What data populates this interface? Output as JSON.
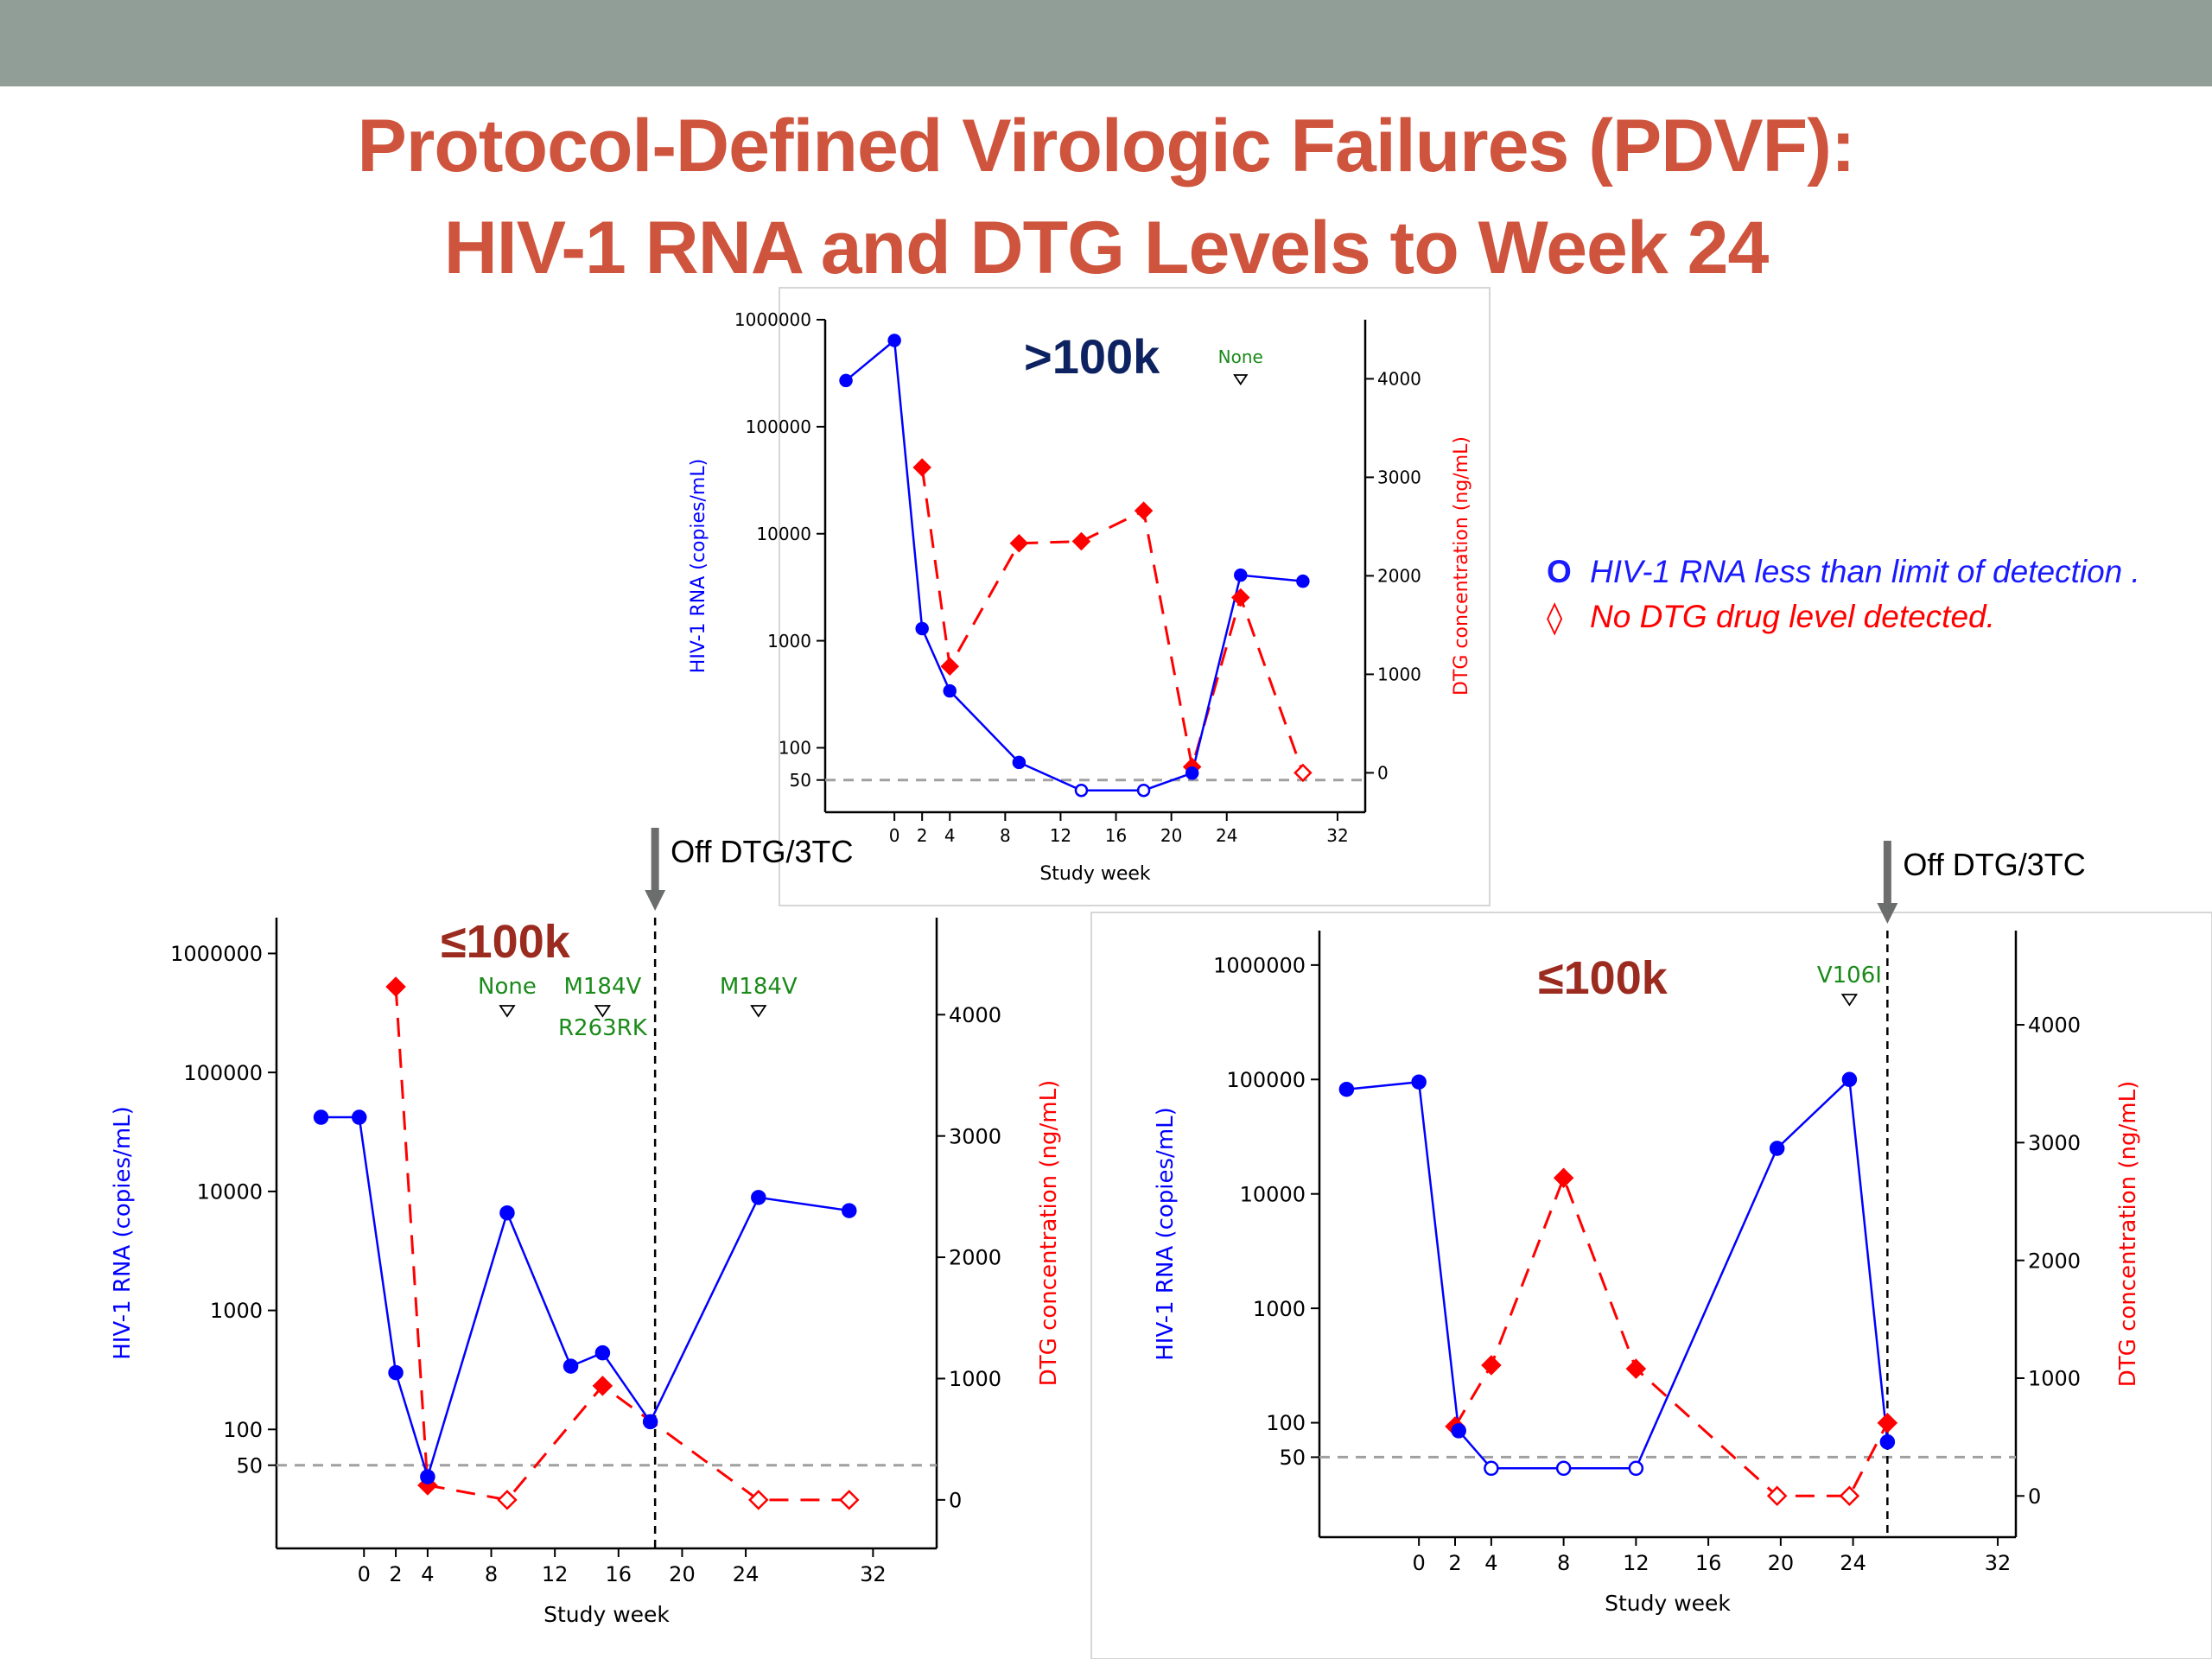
{
  "slide": {
    "title_line1": "Protocol-Defined Virologic Failures (PDVF):",
    "title_line2": "HIV-1 RNA and DTG Levels to Week 24"
  },
  "legend": {
    "rna_symbol": "O",
    "rna_text": "HIV-1 RNA less than limit of detection .",
    "dtg_symbol": "◊",
    "dtg_text": "No DTG drug level detected.",
    "rna_color": "#1a1aff",
    "dtg_color": "#ff0000"
  },
  "colors": {
    "rna": "#0000ff",
    "dtg": "#ff0000",
    "label": "#9b2a1f",
    "title_dark": "#0d2260",
    "mutation": "#1a8a1a",
    "ref_line": "#a0a0a0"
  },
  "chart_data": [
    {
      "type": "line",
      "label": ">100k",
      "xlabel": "Study week",
      "ylabel": "HIV-1 RNA (copies/mL)",
      "y2label": "DTG concentration (ng/mL)",
      "yscale": "log",
      "ylim": [
        25,
        1000000
      ],
      "y2lim": [
        -400,
        4600
      ],
      "xticks": [
        0,
        2,
        4,
        8,
        12,
        16,
        20,
        24,
        32
      ],
      "yticks": [
        1000000,
        100000,
        10000,
        1000,
        100,
        50
      ],
      "y2ticks": [
        4000,
        3000,
        2000,
        1000,
        0
      ],
      "reference_line": 50,
      "series": [
        {
          "name": "HIV-1 RNA",
          "points": [
            {
              "x": -3.5,
              "y": 270000,
              "bld": false
            },
            {
              "x": 0,
              "y": 640000,
              "bld": false
            },
            {
              "x": 2,
              "y": 1300,
              "bld": false
            },
            {
              "x": 4,
              "y": 340,
              "bld": false
            },
            {
              "x": 9,
              "y": 73,
              "bld": false
            },
            {
              "x": 13.5,
              "y": 40,
              "bld": true
            },
            {
              "x": 18,
              "y": 40,
              "bld": true
            },
            {
              "x": 21.5,
              "y": 58,
              "bld": false
            },
            {
              "x": 25,
              "y": 4100,
              "bld": false
            },
            {
              "x": 29.5,
              "y": 3600,
              "bld": false
            }
          ]
        },
        {
          "name": "DTG concentration",
          "points": [
            {
              "x": 2,
              "y": 3100,
              "nd": false
            },
            {
              "x": 4,
              "y": 1080,
              "nd": false
            },
            {
              "x": 9,
              "y": 2330,
              "nd": false
            },
            {
              "x": 13.5,
              "y": 2350,
              "nd": false
            },
            {
              "x": 18,
              "y": 2660,
              "nd": false
            },
            {
              "x": 21.5,
              "y": 60,
              "nd": false
            },
            {
              "x": 25,
              "y": 1780,
              "nd": false
            },
            {
              "x": 29.5,
              "y": 0,
              "nd": true
            }
          ]
        }
      ],
      "annotations": [
        {
          "x": 25,
          "lines": [
            "None"
          ]
        }
      ],
      "off_drug": null
    },
    {
      "type": "line",
      "label": "≤100k",
      "xlabel": "Study week",
      "ylabel": "HIV-1 RNA (copies/mL)",
      "y2label": "DTG concentration (ng/mL)",
      "yscale": "log",
      "ylim": [
        10,
        2000000
      ],
      "y2lim": [
        -400,
        4800
      ],
      "xticks": [
        0,
        2,
        4,
        8,
        12,
        16,
        20,
        24,
        32
      ],
      "yticks": [
        1000000,
        100000,
        10000,
        1000,
        100,
        50
      ],
      "y2ticks": [
        4000,
        3000,
        2000,
        1000,
        0
      ],
      "reference_line": 50,
      "series": [
        {
          "name": "HIV-1 RNA",
          "points": [
            {
              "x": -2.7,
              "y": 42000,
              "bld": false
            },
            {
              "x": -0.3,
              "y": 42000,
              "bld": false
            },
            {
              "x": 2,
              "y": 300,
              "bld": false
            },
            {
              "x": 4,
              "y": 40,
              "bld": false
            },
            {
              "x": 9,
              "y": 6600,
              "bld": false
            },
            {
              "x": 13,
              "y": 340,
              "bld": false
            },
            {
              "x": 15,
              "y": 440,
              "bld": false
            },
            {
              "x": 18,
              "y": 116,
              "bld": false
            },
            {
              "x": 24.8,
              "y": 8900,
              "bld": false
            },
            {
              "x": 30.5,
              "y": 6900,
              "bld": false
            }
          ]
        },
        {
          "name": "DTG concentration",
          "points": [
            {
              "x": 2,
              "y": 4230,
              "nd": false
            },
            {
              "x": 4,
              "y": 120,
              "nd": false
            },
            {
              "x": 9,
              "y": 0,
              "nd": true
            },
            {
              "x": 15,
              "y": 940,
              "nd": false
            },
            {
              "x": 24.8,
              "y": 0,
              "nd": true
            },
            {
              "x": 30.5,
              "y": 0,
              "nd": true
            }
          ]
        }
      ],
      "annotations": [
        {
          "x": 9,
          "lines": [
            "None"
          ]
        },
        {
          "x": 15,
          "lines": [
            "M184V",
            "R263RK"
          ]
        },
        {
          "x": 24.8,
          "lines": [
            "M184V"
          ]
        }
      ],
      "off_drug": {
        "x": 18.3,
        "label": "Off DTG/3TC"
      }
    },
    {
      "type": "line",
      "label": "≤100k",
      "xlabel": "Study week",
      "ylabel": "HIV-1 RNA (copies/mL)",
      "y2label": "DTG concentration (ng/mL)",
      "yscale": "log",
      "ylim": [
        10,
        2000000
      ],
      "y2lim": [
        -350,
        4800
      ],
      "xticks": [
        0,
        2,
        4,
        8,
        12,
        16,
        20,
        24,
        32
      ],
      "yticks": [
        1000000,
        100000,
        10000,
        1000,
        100,
        50
      ],
      "y2ticks": [
        4000,
        3000,
        2000,
        1000,
        0
      ],
      "reference_line": 50,
      "series": [
        {
          "name": "HIV-1 RNA",
          "points": [
            {
              "x": -4,
              "y": 82000,
              "bld": false
            },
            {
              "x": 0,
              "y": 95000,
              "bld": false
            },
            {
              "x": 2.2,
              "y": 85,
              "bld": false
            },
            {
              "x": 4,
              "y": 40,
              "bld": true
            },
            {
              "x": 8,
              "y": 40,
              "bld": true
            },
            {
              "x": 12,
              "y": 40,
              "bld": true
            },
            {
              "x": 19.8,
              "y": 25000,
              "bld": false
            },
            {
              "x": 23.8,
              "y": 100000,
              "bld": false
            },
            {
              "x": 25.9,
              "y": 68,
              "bld": false
            }
          ]
        },
        {
          "name": "DTG concentration",
          "points": [
            {
              "x": 2,
              "y": 590,
              "nd": false
            },
            {
              "x": 4,
              "y": 1110,
              "nd": false
            },
            {
              "x": 8,
              "y": 2700,
              "nd": false
            },
            {
              "x": 12,
              "y": 1080,
              "nd": false
            },
            {
              "x": 19.8,
              "y": 0,
              "nd": true
            },
            {
              "x": 23.8,
              "y": 0,
              "nd": true
            },
            {
              "x": 25.9,
              "y": 620,
              "nd": false
            }
          ]
        }
      ],
      "annotations": [
        {
          "x": 23.8,
          "lines": [
            "V106I"
          ]
        }
      ],
      "off_drug": {
        "x": 25.9,
        "label": "Off DTG/3TC"
      }
    }
  ]
}
